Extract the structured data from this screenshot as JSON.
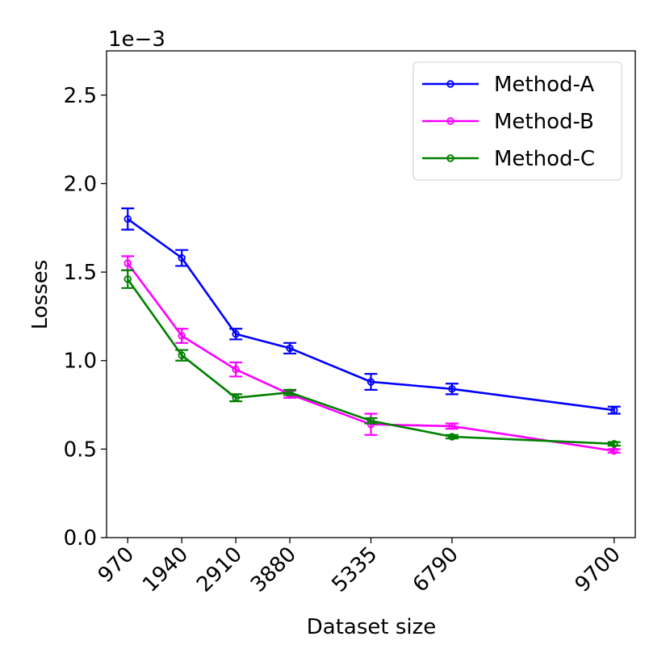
{
  "chart_data": {
    "type": "line",
    "title": "",
    "xlabel": "Dataset size",
    "ylabel": "Losses",
    "y_scale_label": "1e−3",
    "x": [
      970,
      1940,
      2910,
      3880,
      5335,
      6790,
      9700
    ],
    "x_tick_labels": [
      "970",
      "1940",
      "2910",
      "3880",
      "5335",
      "6790",
      "9700"
    ],
    "xlim": [
      590,
      10080
    ],
    "ylim": [
      0,
      2.75
    ],
    "y_ticks": [
      0.0,
      0.5,
      1.0,
      1.5,
      2.0,
      2.5
    ],
    "y_tick_labels": [
      "0.0",
      "0.5",
      "1.0",
      "1.5",
      "2.0",
      "2.5"
    ],
    "grid": false,
    "legend_position": "top-right",
    "series": [
      {
        "name": "Method-A",
        "color": "#0000ff",
        "values": [
          1.8,
          1.58,
          1.15,
          1.07,
          0.88,
          0.84,
          0.72
        ],
        "errors": [
          0.06,
          0.045,
          0.03,
          0.03,
          0.045,
          0.03,
          0.02
        ]
      },
      {
        "name": "Method-B",
        "color": "#ff00ff",
        "values": [
          1.55,
          1.14,
          0.95,
          0.81,
          0.64,
          0.63,
          0.49
        ],
        "errors": [
          0.04,
          0.04,
          0.04,
          0.02,
          0.06,
          0.015,
          0.01
        ]
      },
      {
        "name": "Method-C",
        "color": "#008000",
        "values": [
          1.46,
          1.03,
          0.79,
          0.82,
          0.66,
          0.57,
          0.53
        ],
        "errors": [
          0.05,
          0.03,
          0.02,
          0.015,
          0.015,
          0.01,
          0.01
        ]
      }
    ]
  }
}
